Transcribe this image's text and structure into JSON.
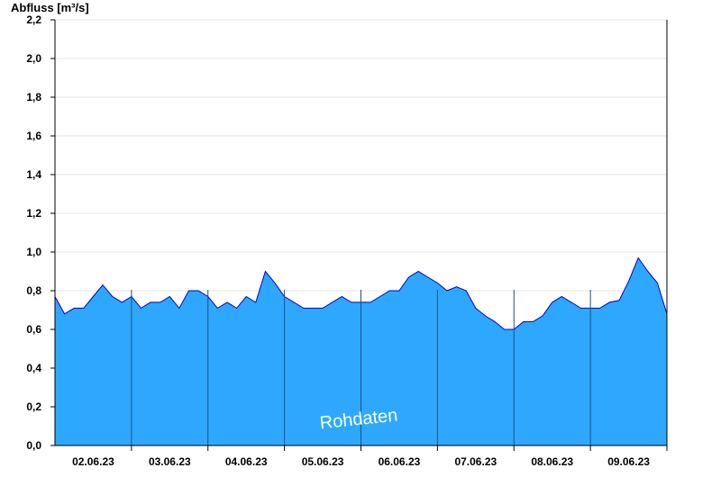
{
  "chart_data": {
    "type": "area",
    "ylabel": "Abfluss [m³/s]",
    "ylim": [
      0,
      2.2
    ],
    "y_ticks": [
      "0,0",
      "0,2",
      "0,4",
      "0,6",
      "0,8",
      "1,0",
      "1,2",
      "1,4",
      "1,6",
      "1,8",
      "2,0",
      "2,2"
    ],
    "x_range": [
      "2023-06-01T12:00",
      "2023-06-09T12:00"
    ],
    "x_ticks": [
      {
        "t": "2023-06-02T00:00",
        "label": "02.06.23"
      },
      {
        "t": "2023-06-03T00:00",
        "label": "03.06.23"
      },
      {
        "t": "2023-06-04T00:00",
        "label": "04.06.23"
      },
      {
        "t": "2023-06-05T00:00",
        "label": "05.06.23"
      },
      {
        "t": "2023-06-06T00:00",
        "label": "06.06.23"
      },
      {
        "t": "2023-06-07T00:00",
        "label": "07.06.23"
      },
      {
        "t": "2023-06-08T00:00",
        "label": "08.06.23"
      },
      {
        "t": "2023-06-09T00:00",
        "label": "09.06.23"
      }
    ],
    "day_lines": [
      "2023-06-02T12:00",
      "2023-06-03T12:00",
      "2023-06-04T12:00",
      "2023-06-05T12:00",
      "2023-06-06T12:00",
      "2023-06-07T12:00",
      "2023-06-08T12:00",
      "2023-06-09T12:00"
    ],
    "grid": "horizontal",
    "watermark": "Rohdaten",
    "fill_color": "#2ea8ff",
    "line_color": "#0000cc",
    "series": [
      {
        "x": [
          "2023-06-01T12:00",
          "2023-06-01T15:00",
          "2023-06-01T18:00",
          "2023-06-01T21:00",
          "2023-06-02T00:00",
          "2023-06-02T03:00",
          "2023-06-02T06:00",
          "2023-06-02T09:00",
          "2023-06-02T12:00",
          "2023-06-02T15:00",
          "2023-06-02T18:00",
          "2023-06-02T21:00",
          "2023-06-03T00:00",
          "2023-06-03T03:00",
          "2023-06-03T06:00",
          "2023-06-03T09:00",
          "2023-06-03T12:00",
          "2023-06-03T15:00",
          "2023-06-03T18:00",
          "2023-06-03T21:00",
          "2023-06-04T00:00",
          "2023-06-04T03:00",
          "2023-06-04T06:00",
          "2023-06-04T09:00",
          "2023-06-04T12:00",
          "2023-06-04T15:00",
          "2023-06-04T18:00",
          "2023-06-04T21:00",
          "2023-06-05T00:00",
          "2023-06-05T03:00",
          "2023-06-05T06:00",
          "2023-06-05T09:00",
          "2023-06-05T12:00",
          "2023-06-05T15:00",
          "2023-06-05T18:00",
          "2023-06-05T21:00",
          "2023-06-06T00:00",
          "2023-06-06T03:00",
          "2023-06-06T06:00",
          "2023-06-06T09:00",
          "2023-06-06T12:00",
          "2023-06-06T15:00",
          "2023-06-06T18:00",
          "2023-06-06T21:00",
          "2023-06-07T00:00",
          "2023-06-07T03:00",
          "2023-06-07T06:00",
          "2023-06-07T09:00",
          "2023-06-07T12:00",
          "2023-06-07T15:00",
          "2023-06-07T18:00",
          "2023-06-07T21:00",
          "2023-06-08T00:00",
          "2023-06-08T03:00",
          "2023-06-08T06:00",
          "2023-06-08T09:00",
          "2023-06-08T12:00",
          "2023-06-08T15:00",
          "2023-06-08T18:00",
          "2023-06-08T21:00",
          "2023-06-09T00:00",
          "2023-06-09T03:00",
          "2023-06-09T06:00",
          "2023-06-09T09:00",
          "2023-06-09T12:00"
        ],
        "values": [
          0.77,
          0.68,
          0.71,
          0.71,
          0.77,
          0.83,
          0.77,
          0.74,
          0.77,
          0.71,
          0.74,
          0.74,
          0.77,
          0.71,
          0.8,
          0.8,
          0.77,
          0.71,
          0.74,
          0.71,
          0.77,
          0.74,
          0.9,
          0.84,
          0.77,
          0.74,
          0.71,
          0.71,
          0.71,
          0.74,
          0.77,
          0.74,
          0.74,
          0.74,
          0.77,
          0.8,
          0.8,
          0.87,
          0.9,
          0.87,
          0.84,
          0.8,
          0.82,
          0.8,
          0.71,
          0.67,
          0.64,
          0.6,
          0.6,
          0.64,
          0.64,
          0.67,
          0.74,
          0.77,
          0.74,
          0.71,
          0.71,
          0.71,
          0.74,
          0.75,
          0.85,
          0.97,
          0.9,
          0.84,
          0.68
        ]
      }
    ]
  }
}
